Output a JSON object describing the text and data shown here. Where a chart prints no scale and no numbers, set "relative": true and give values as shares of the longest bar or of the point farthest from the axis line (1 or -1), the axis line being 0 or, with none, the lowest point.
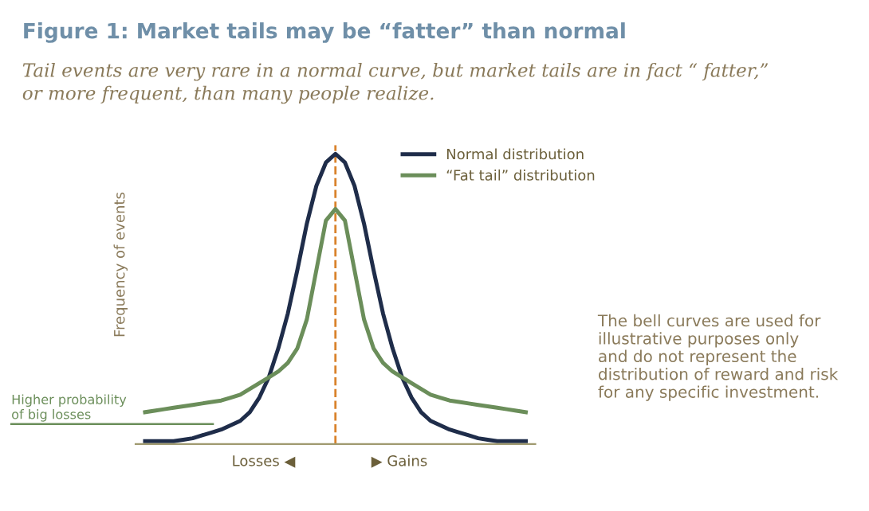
{
  "chart_data": {
    "type": "line",
    "title": "Figure 1: Market tails may be “fatter” than normal",
    "subtitle": "Tail events are very rare in a normal curve, but market tails are in fact “ fatter,”\nor more frequent, than many people realize.",
    "ylabel": "Frequency of events",
    "relative": true,
    "categories": [
      null,
      null,
      null,
      null,
      null,
      null,
      null,
      null,
      null,
      null,
      null,
      null,
      null,
      null,
      null,
      null,
      null,
      null,
      null,
      null,
      null,
      null,
      null,
      null,
      null,
      null,
      null,
      null,
      null,
      null,
      null,
      null,
      null,
      null,
      null,
      null,
      null,
      null,
      null,
      null,
      null
    ],
    "series": [
      {
        "name": "Normal distribution",
        "color": "#1f2d4a",
        "values": [
          0.01,
          0.01,
          0.01,
          0.01,
          0.015,
          0.02,
          0.03,
          0.04,
          0.05,
          0.065,
          0.08,
          0.11,
          0.16,
          0.23,
          0.33,
          0.45,
          0.6,
          0.76,
          0.89,
          0.97,
          1.0,
          0.97,
          0.89,
          0.76,
          0.6,
          0.45,
          0.33,
          0.23,
          0.16,
          0.11,
          0.08,
          0.065,
          0.05,
          0.04,
          0.03,
          0.02,
          0.015,
          0.01,
          0.01,
          0.01,
          0.01
        ]
      },
      {
        "name": "“Fat tail” distribution",
        "color": "#6b8e5a",
        "values": [
          0.11,
          0.115,
          0.12,
          0.125,
          0.13,
          0.135,
          0.14,
          0.145,
          0.15,
          0.16,
          0.17,
          0.19,
          0.21,
          0.23,
          0.25,
          0.28,
          0.33,
          0.43,
          0.6,
          0.77,
          0.81,
          0.77,
          0.6,
          0.43,
          0.33,
          0.28,
          0.25,
          0.23,
          0.21,
          0.19,
          0.17,
          0.16,
          0.15,
          0.145,
          0.14,
          0.135,
          0.13,
          0.125,
          0.12,
          0.115,
          0.11
        ]
      }
    ],
    "annotations": [
      "Higher probability\nof big losses",
      "Losses ◀",
      "▶ Gains",
      "The bell curves are used for\nillustrative purposes only\nand do not represent the\ndistribution of reward and risk\nfor any specific investment."
    ],
    "legend": "top right",
    "grid": false,
    "marker": "none",
    "line_style": "solid"
  }
}
